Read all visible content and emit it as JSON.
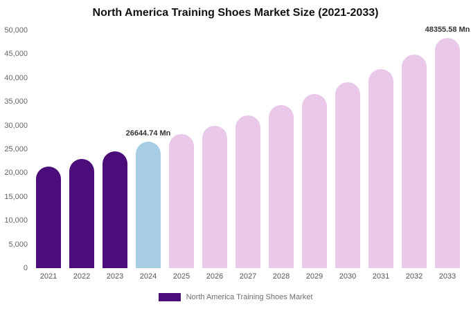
{
  "chart_data": {
    "type": "bar",
    "title": "North America Training Shoes Market Size (2021-2033)",
    "categories": [
      "2021",
      "2022",
      "2023",
      "2024",
      "2025",
      "2026",
      "2027",
      "2028",
      "2029",
      "2030",
      "2031",
      "2032",
      "2033"
    ],
    "values": [
      21400,
      22900,
      24600,
      26644.74,
      28200,
      30000,
      32100,
      34300,
      36600,
      39100,
      41800,
      44900,
      48355.58
    ],
    "ylim": [
      0,
      50000
    ],
    "y_ticks": [
      "0",
      "5,000",
      "10,000",
      "15,000",
      "20,000",
      "25,000",
      "30,000",
      "35,000",
      "40,000",
      "45,000",
      "50,000"
    ],
    "grid": false,
    "legend": "North America Training Shoes Market",
    "legend_position": "bottom",
    "bar_colors": [
      "#4a0d7a",
      "#4a0d7a",
      "#4a0d7a",
      "#a7cde4",
      "#e9c8ea",
      "#e9c8ea",
      "#e9c8ea",
      "#e9c8ea",
      "#e9c8ea",
      "#e9c8ea",
      "#e9c8ea",
      "#e9c8ea",
      "#e9c8ea"
    ],
    "annotations": [
      {
        "category": "2024",
        "text": "26644.74 Mn"
      },
      {
        "category": "2033",
        "text": "48355.58 Mn"
      }
    ]
  },
  "colors": {
    "historical_bar": "#4a0d7a",
    "current_year_bar": "#a7cde4",
    "forecast_bar": "#e9c8ea",
    "legend_swatch": "#4a0d7a"
  }
}
